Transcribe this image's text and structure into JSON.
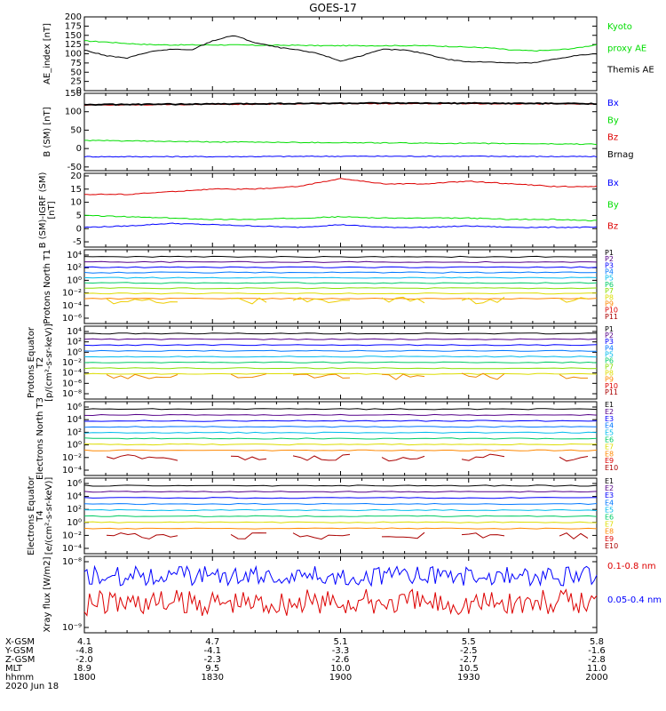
{
  "title": "GOES-17",
  "date_label": "2020 Jun 18",
  "x_axis": {
    "row_labels": [
      "X-GSM",
      "Y-GSM",
      "Z-GSM",
      "MLT",
      "hhmm"
    ],
    "columns": [
      [
        "4.1",
        "-4.8",
        "-2.0",
        "8.9",
        "1800"
      ],
      [
        "4.7",
        "-4.1",
        "-2.3",
        "9.5",
        "1830"
      ],
      [
        "5.1",
        "-3.3",
        "-2.6",
        "10.0",
        "1900"
      ],
      [
        "5.5",
        "-2.5",
        "-2.7",
        "10.5",
        "1930"
      ],
      [
        "5.8",
        "-1.6",
        "-2.8",
        "11.0",
        "2000"
      ]
    ]
  },
  "colors": {
    "black": "#000000",
    "green": "#00dd00",
    "blue": "#0000ff",
    "red": "#dd0000",
    "darkred": "#aa0000"
  },
  "chart_data": [
    {
      "type": "line",
      "ylabel": "AE_index [nT]",
      "ylim": [
        0,
        200
      ],
      "yticks": [
        "0",
        "25",
        "50",
        "75",
        "100",
        "125",
        "150",
        "175",
        "200"
      ],
      "legend": [
        {
          "text": "Kyoto",
          "color": "#00dd00"
        },
        {
          "text": "proxy AE",
          "color": "#00dd00"
        },
        {
          "text": "Themis AE",
          "color": "#000000"
        }
      ],
      "x": [
        1800,
        1805,
        1810,
        1815,
        1820,
        1825,
        1830,
        1835,
        1840,
        1845,
        1850,
        1855,
        1900,
        1905,
        1910,
        1915,
        1920,
        1925,
        1930,
        1935,
        1940,
        1945,
        1950,
        1955,
        2000
      ],
      "series": [
        {
          "name": "Kyoto proxy AE",
          "color": "#00dd00",
          "values": [
            135,
            132,
            128,
            125,
            124,
            124,
            124,
            124,
            123,
            123,
            123,
            122,
            122,
            122,
            122,
            122,
            122,
            120,
            118,
            116,
            110,
            108,
            110,
            115,
            125
          ]
        },
        {
          "name": "Themis AE",
          "color": "#000000",
          "values": [
            110,
            95,
            88,
            105,
            112,
            110,
            135,
            150,
            130,
            118,
            110,
            100,
            80,
            95,
            112,
            110,
            100,
            85,
            78,
            78,
            75,
            75,
            85,
            95,
            100
          ]
        }
      ]
    },
    {
      "type": "line",
      "ylabel": "B (SM) [nT]",
      "ylim": [
        -60,
        150
      ],
      "yticks": [
        "-50",
        "0",
        "50",
        "100",
        "150"
      ],
      "legend": [
        {
          "text": "Bx",
          "color": "#0000ff"
        },
        {
          "text": "By",
          "color": "#00dd00"
        },
        {
          "text": "Bz",
          "color": "#dd0000"
        },
        {
          "text": "Brnag",
          "color": "#000000"
        }
      ],
      "x": [
        1800,
        1830,
        1900,
        1930,
        2000
      ],
      "series": [
        {
          "name": "Bx",
          "color": "#0000ff",
          "values": [
            -22,
            -22,
            -21,
            -21,
            -22
          ]
        },
        {
          "name": "By",
          "color": "#00dd00",
          "values": [
            22,
            18,
            16,
            14,
            12
          ]
        },
        {
          "name": "Bz",
          "color": "#dd0000",
          "values": [
            118,
            120,
            122,
            122,
            121
          ]
        },
        {
          "name": "Brnag",
          "color": "#000000",
          "values": [
            119,
            121,
            123,
            123,
            122
          ]
        }
      ]
    },
    {
      "type": "line",
      "ylabel": "B (SM)-IGRF (SM) [nT]",
      "ylim": [
        -7,
        21
      ],
      "yticks": [
        "-5",
        "0",
        "5",
        "10",
        "15",
        "20"
      ],
      "legend": [
        {
          "text": "Bx",
          "color": "#0000ff"
        },
        {
          "text": "By",
          "color": "#00dd00"
        },
        {
          "text": "Bz",
          "color": "#dd0000"
        }
      ],
      "x": [
        1800,
        1810,
        1820,
        1830,
        1840,
        1850,
        1900,
        1910,
        1920,
        1930,
        1940,
        1950,
        2000
      ],
      "series": [
        {
          "name": "Bx",
          "color": "#0000ff",
          "values": [
            0.5,
            1.0,
            2.0,
            1.5,
            1.0,
            0.5,
            1.5,
            0.5,
            0.5,
            1.0,
            0.5,
            0.5,
            0.5
          ]
        },
        {
          "name": "By",
          "color": "#00dd00",
          "values": [
            5,
            4.5,
            4.0,
            3.5,
            3.5,
            4.0,
            4.5,
            4.0,
            4.0,
            4.0,
            3.5,
            3.5,
            3.0
          ]
        },
        {
          "name": "Bz",
          "color": "#dd0000",
          "values": [
            13,
            13,
            14,
            15,
            15,
            16,
            19,
            17,
            17,
            18,
            17,
            16,
            16
          ]
        }
      ]
    },
    {
      "type": "line",
      "ylabel": "Protons North T1",
      "ylog": true,
      "yticks": [
        "10⁴",
        "10²",
        "10⁰",
        "10⁻²",
        "10⁻⁴",
        "10⁻⁶"
      ],
      "legend": [
        "P1",
        "P2",
        "P3",
        "P4",
        "P5",
        "P6",
        "P7",
        "P8",
        "P9",
        "P10",
        "P11"
      ],
      "legend_colors": [
        "#000000",
        "#550088",
        "#0000ff",
        "#0077ff",
        "#00bbee",
        "#00cc66",
        "#88dd00",
        "#dddd00",
        "#ff8800",
        "#dd0000",
        "#aa0000"
      ],
      "log_levels": [
        2,
        1.5,
        1,
        0.5,
        0.2,
        -0.5,
        -1,
        -2,
        -3.5
      ],
      "sparse_series": {
        "name": "P9",
        "color": "#eecc00",
        "level": -3.8
      }
    },
    {
      "type": "line",
      "ylabel": "Protons Equator T2 [p/(cm²-s-sr-keV)]",
      "ylog": true,
      "yticks": [
        "10⁴",
        "10²",
        "10⁰",
        "10⁻²",
        "10⁻⁴",
        "10⁻⁶",
        "10⁻⁸"
      ],
      "legend": [
        "P1",
        "P2",
        "P3",
        "P4",
        "P5",
        "P6",
        "P7",
        "P8",
        "P9",
        "P10",
        "P11"
      ],
      "legend_colors": [
        "#000000",
        "#550088",
        "#0000ff",
        "#0077ff",
        "#00bbee",
        "#00cc66",
        "#88dd00",
        "#dddd00",
        "#ff8800",
        "#dd0000",
        "#aa0000"
      ],
      "log_levels": [
        2,
        1.6,
        1.2,
        0.4,
        0,
        -1,
        -1.5,
        -2.8
      ],
      "sparse_series": {
        "name": "P10",
        "color": "#ee8800",
        "level": -4
      }
    },
    {
      "type": "line",
      "ylabel": "Electrons North T3",
      "ylog": true,
      "yticks": [
        "10⁶",
        "10⁴",
        "10²",
        "10⁰",
        "10⁻²",
        "10⁻⁴"
      ],
      "legend": [
        "E1",
        "E2",
        "E3",
        "E4",
        "E5",
        "E6",
        "E7",
        "E8",
        "E9",
        "E10"
      ],
      "legend_colors": [
        "#000000",
        "#550088",
        "#0000ff",
        "#0077ff",
        "#00bbee",
        "#00cc66",
        "#dddd00",
        "#ff8800",
        "#dd0000",
        "#aa0000"
      ],
      "log_levels": [
        4,
        3,
        2.5,
        2,
        1,
        0.5,
        -0.5,
        -1.2
      ],
      "sparse_series": {
        "name": "E10",
        "color": "#aa0000",
        "level": -2.5
      }
    },
    {
      "type": "line",
      "ylabel": "Electrons Equator T4 [e/(cm²-s-sr-keV)]",
      "ylog": true,
      "yticks": [
        "10⁶",
        "10⁴",
        "10²",
        "10⁰",
        "10⁻²",
        "10⁻⁴"
      ],
      "legend": [
        "E1",
        "E2",
        "E3",
        "E4",
        "E5",
        "E6",
        "E7",
        "E8",
        "E9",
        "E10"
      ],
      "legend_colors": [
        "#000000",
        "#550088",
        "#0000ff",
        "#0077ff",
        "#00bbee",
        "#00cc66",
        "#dddd00",
        "#ff8800",
        "#dd0000",
        "#aa0000"
      ],
      "log_levels": [
        4,
        3,
        2.5,
        2,
        1.3,
        0.8,
        0,
        -1
      ],
      "sparse_series": {
        "name": "E10",
        "color": "#aa0000",
        "level": -2.2
      }
    },
    {
      "type": "line",
      "ylabel": "Xray flux [W/m2]",
      "ylog": true,
      "yticks": [
        "10⁻⁸",
        "10⁻⁹"
      ],
      "legend": [
        {
          "text": "0.1-0.8 nm",
          "color": "#dd0000"
        },
        {
          "text": "0.05-0.4 nm",
          "color": "#0000ff"
        }
      ],
      "series": [
        {
          "name": "0.1-0.8 nm",
          "color": "#dd0000",
          "level": -8.65
        },
        {
          "name": "0.05-0.4 nm",
          "color": "#0000ff",
          "level": -8.2
        }
      ]
    }
  ]
}
